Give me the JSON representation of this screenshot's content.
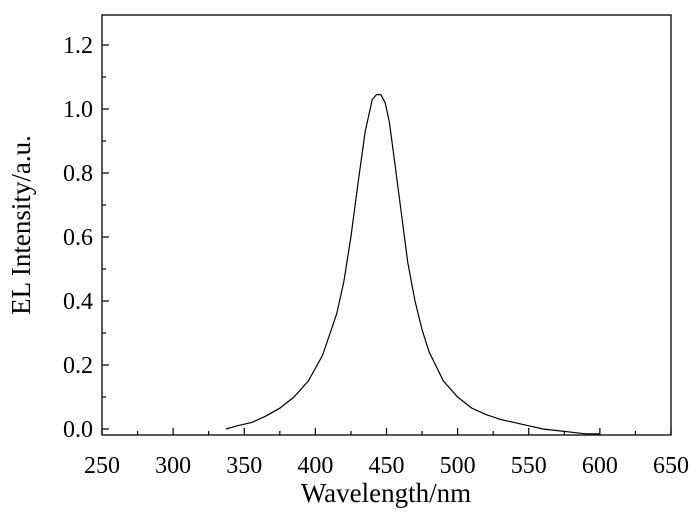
{
  "chart_data": {
    "type": "line",
    "title": "",
    "xlabel": "Wavelength/nm",
    "ylabel": "EL Intensity/a.u.",
    "xlim": [
      250,
      650
    ],
    "ylim": [
      -0.02,
      1.3
    ],
    "xticks": [
      250,
      300,
      350,
      400,
      450,
      500,
      550,
      600,
      650
    ],
    "yticks": [
      0.0,
      0.2,
      0.4,
      0.6,
      0.8,
      1.0,
      1.2
    ],
    "xtick_labels": [
      "250",
      "300",
      "350",
      "400",
      "450",
      "500",
      "550",
      "600",
      "650"
    ],
    "ytick_labels": [
      "0.0",
      "0.2",
      "0.4",
      "0.6",
      "0.8",
      "1.0",
      "1.2"
    ],
    "grid": false,
    "legend": "none",
    "line_color": "#000000",
    "series": [
      {
        "x": [
          337,
          345,
          355,
          365,
          375,
          385,
          395,
          405,
          415,
          420,
          425,
          430,
          435,
          440,
          443,
          446,
          449,
          452,
          455,
          460,
          465,
          470,
          475,
          480,
          490,
          500,
          510,
          520,
          530,
          540,
          550,
          560,
          570,
          580,
          590,
          600
        ],
        "y": [
          0.0,
          0.01,
          0.02,
          0.04,
          0.065,
          0.1,
          0.15,
          0.23,
          0.36,
          0.46,
          0.6,
          0.77,
          0.93,
          1.03,
          1.045,
          1.045,
          1.02,
          0.96,
          0.86,
          0.69,
          0.52,
          0.4,
          0.31,
          0.24,
          0.15,
          0.1,
          0.065,
          0.045,
          0.03,
          0.02,
          0.01,
          0.0,
          -0.005,
          -0.01,
          -0.015,
          -0.015
        ]
      }
    ]
  }
}
